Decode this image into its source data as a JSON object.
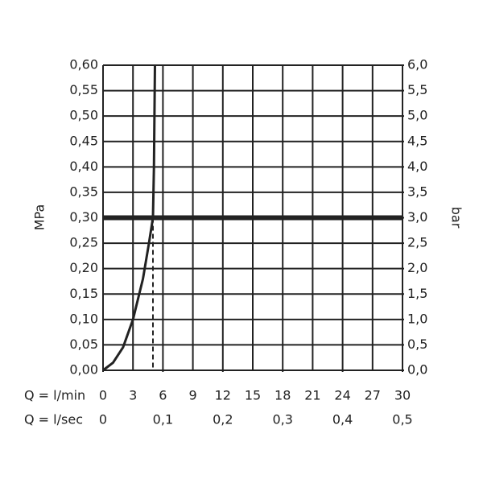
{
  "chart_data": {
    "type": "line",
    "x_label": "Q = l/min",
    "x2_label": "Q = l/sec",
    "y_label": "MPa",
    "y2_label": "bar",
    "x": [
      0,
      1,
      2,
      3,
      4,
      4.6,
      5,
      5.1,
      5.15,
      5.2
    ],
    "series": [
      {
        "color": "#222222",
        "values": [
          0,
          0.015,
          0.045,
          0.1,
          0.18,
          0.25,
          0.3,
          0.4,
          0.5,
          0.6
        ]
      }
    ],
    "xlim": [
      0,
      30
    ],
    "xticks": [
      0,
      3,
      6,
      9,
      12,
      15,
      18,
      21,
      24,
      27,
      30
    ],
    "x2lim": [
      0,
      0.5
    ],
    "x2ticks": [
      0,
      {
        "value": 0.1,
        "label": "0,1"
      },
      {
        "value": 0.2,
        "label": "0,2"
      },
      {
        "value": 0.3,
        "label": "0,3"
      },
      {
        "value": 0.4,
        "label": "0,4"
      },
      {
        "value": 0.5,
        "label": "0,5"
      }
    ],
    "ylim": [
      0,
      0.6
    ],
    "yticks": [
      {
        "value": 0,
        "label": "0,00"
      },
      {
        "value": 0.05,
        "label": "0,05"
      },
      {
        "value": 0.1,
        "label": "0,10"
      },
      {
        "value": 0.15,
        "label": "0,15"
      },
      {
        "value": 0.2,
        "label": "0,20"
      },
      {
        "value": 0.25,
        "label": "0,25"
      },
      {
        "value": 0.3,
        "label": "0,30"
      },
      {
        "value": 0.35,
        "label": "0,35"
      },
      {
        "value": 0.4,
        "label": "0,40"
      },
      {
        "value": 0.45,
        "label": "0,45"
      },
      {
        "value": 0.5,
        "label": "0,50"
      },
      {
        "value": 0.55,
        "label": "0,55"
      },
      {
        "value": 0.6,
        "label": "0,60"
      }
    ],
    "y2lim": [
      0,
      6
    ],
    "y2ticks": [
      {
        "value": 0,
        "label": "0,0"
      },
      {
        "value": 0.5,
        "label": "0,5"
      },
      {
        "value": 1,
        "label": "1,0"
      },
      {
        "value": 1.5,
        "label": "1,5"
      },
      {
        "value": 2,
        "label": "2,0"
      },
      {
        "value": 2.5,
        "label": "2,5"
      },
      {
        "value": 3,
        "label": "3,0"
      },
      {
        "value": 3.5,
        "label": "3,5"
      },
      {
        "value": 4,
        "label": "4,0"
      },
      {
        "value": 4.5,
        "label": "4,5"
      },
      {
        "value": 5,
        "label": "5,0"
      },
      {
        "value": 5.5,
        "label": "5,5"
      },
      {
        "value": 6,
        "label": "6,0"
      }
    ],
    "reference_y": 0.3,
    "drop_point": {
      "x": 5,
      "y": 0.3
    },
    "grid": true
  }
}
